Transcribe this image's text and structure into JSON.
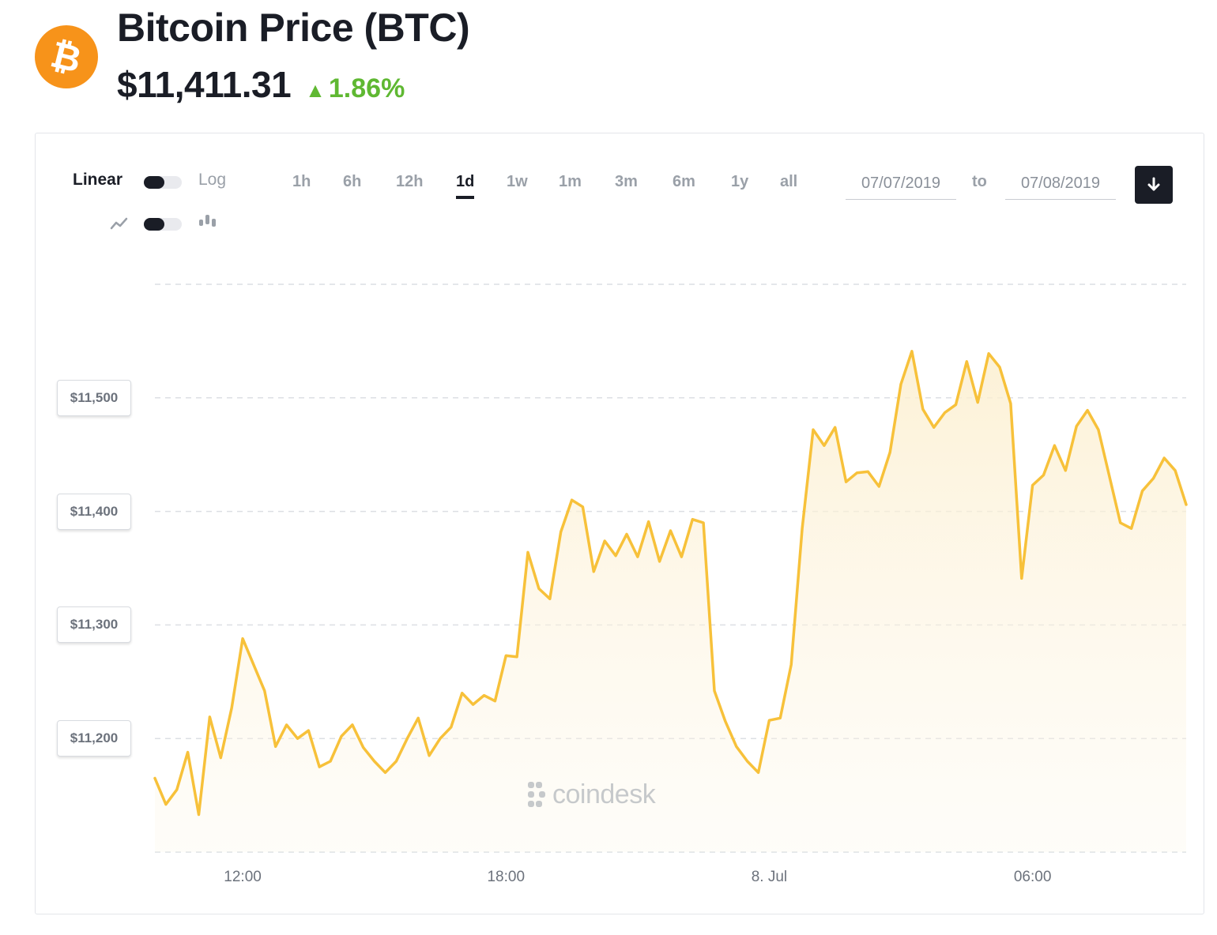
{
  "header": {
    "logo_symbol": "₿",
    "title": "Bitcoin Price (BTC)",
    "price": "$11,411.31",
    "change_arrow": "▲",
    "change": "1.86%",
    "colors": {
      "brand": "#f7931a",
      "positive": "#5fb832",
      "line": "#f7c13a"
    }
  },
  "controls": {
    "scale_label_active": "Linear",
    "scale_label_alt": "Log",
    "chart_type_icons": [
      "line-chart-icon",
      "candlestick-icon"
    ],
    "ranges": [
      "1h",
      "6h",
      "12h",
      "1d",
      "1w",
      "1m",
      "3m",
      "6m",
      "1y",
      "all"
    ],
    "active_range": "1d",
    "date_from": "07/07/2019",
    "date_to_label": "to",
    "date_to": "07/08/2019",
    "download_icon": "download-arrow-icon"
  },
  "watermark": "coindesk",
  "chart_data": {
    "type": "area",
    "title": "",
    "xlabel": "",
    "ylabel": "",
    "x_ticks": [
      "12:00",
      "18:00",
      "8. Jul",
      "06:00"
    ],
    "y_ticks": [
      "$11,200",
      "$11,300",
      "$11,400",
      "$11,500"
    ],
    "y_tick_values": [
      11200,
      11300,
      11400,
      11500
    ],
    "ylim": [
      11100,
      11600
    ],
    "xlim_hours": [
      10,
      33.5
    ],
    "grid": true,
    "series": [
      {
        "x_hours": [
          10.0,
          10.25,
          10.5,
          10.75,
          11.0,
          11.25,
          11.5,
          11.75,
          12.0,
          12.25,
          12.5,
          12.75,
          13.0,
          13.25,
          13.5,
          13.75,
          14.0,
          14.25,
          14.5,
          14.75,
          15.0,
          15.25,
          15.5,
          15.75,
          16.0,
          16.25,
          16.5,
          16.75,
          17.0,
          17.25,
          17.5,
          17.75,
          18.0,
          18.25,
          18.5,
          18.75,
          19.0,
          19.25,
          19.5,
          19.75,
          20.0,
          20.25,
          20.5,
          20.75,
          21.0,
          21.25,
          21.5,
          21.75,
          22.0,
          22.25,
          22.5,
          22.75,
          23.0,
          23.25,
          23.5,
          23.75,
          24.0,
          24.25,
          24.5,
          24.75,
          25.0,
          25.25,
          25.5,
          25.75,
          26.0,
          26.25,
          26.5,
          26.75,
          27.0,
          27.25,
          27.5,
          27.75,
          28.0,
          28.25,
          28.5,
          28.75,
          29.0,
          29.25,
          29.5,
          29.75,
          30.0,
          30.25,
          30.5,
          30.75,
          31.0,
          31.25,
          31.5,
          31.75,
          32.0,
          32.25,
          32.5,
          32.75,
          33.0,
          33.25,
          33.5
        ],
        "values": [
          11165,
          11142,
          11155,
          11188,
          11133,
          11219,
          11183,
          11227,
          11288,
          11265,
          11242,
          11193,
          11212,
          11200,
          11207,
          11175,
          11180,
          11202,
          11212,
          11192,
          11180,
          11170,
          11180,
          11200,
          11218,
          11185,
          11200,
          11210,
          11240,
          11230,
          11238,
          11233,
          11273,
          11272,
          11364,
          11332,
          11323,
          11382,
          11410,
          11404,
          11347,
          11374,
          11361,
          11380,
          11360,
          11391,
          11356,
          11383,
          11360,
          11393,
          11390,
          11242,
          11215,
          11193,
          11180,
          11170,
          11216,
          11218,
          11265,
          11385,
          11472,
          11458,
          11474,
          11426,
          11434,
          11435,
          11422,
          11452,
          11512,
          11541,
          11490,
          11474,
          11487,
          11494,
          11532,
          11496,
          11539,
          11527,
          11495,
          11341,
          11423,
          11432,
          11458,
          11436,
          11475,
          11489,
          11472,
          11431,
          11390,
          11385,
          11418,
          11429,
          11447,
          11436,
          11406
        ]
      }
    ]
  }
}
